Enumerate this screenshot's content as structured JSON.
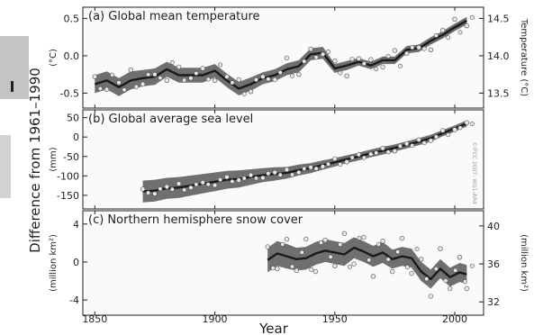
{
  "figure": {
    "y_axis_label": "Difference from 1961–1990",
    "x_axis_label": "Year",
    "watermark": "©IPCC 2007: WG1-AR4"
  },
  "colors": {
    "band": "#6f6f6f",
    "line": "#1a1a1a",
    "points": "#e8e8e8",
    "panel_bg": "#fafafa",
    "left_sidebar": "#c4c4c4"
  },
  "chart_data": [
    {
      "type": "line",
      "title": "(a) Global mean temperature",
      "ylabel": "(°C)",
      "ylabel_right": "Temperature (°C)",
      "xlim": [
        1845,
        2012
      ],
      "ylim": [
        -0.7,
        0.65
      ],
      "ylim_right": [
        13.3,
        14.65
      ],
      "yticks": [
        {
          "v": 0.5,
          "label": "0.5"
        },
        {
          "v": 0.0,
          "label": "0.0"
        },
        {
          "v": -0.5,
          "label": "-0.5"
        }
      ],
      "yticks_right": [
        {
          "v": 14.5,
          "label": "14.5"
        },
        {
          "v": 14.0,
          "label": "14.0"
        },
        {
          "v": 13.5,
          "label": "13.5"
        }
      ],
      "x": [
        1850,
        1855,
        1860,
        1865,
        1870,
        1875,
        1880,
        1885,
        1890,
        1895,
        1900,
        1905,
        1910,
        1915,
        1920,
        1925,
        1930,
        1935,
        1940,
        1945,
        1950,
        1955,
        1960,
        1965,
        1970,
        1975,
        1980,
        1985,
        1990,
        1995,
        2000,
        2005
      ],
      "values": [
        -0.38,
        -0.33,
        -0.42,
        -0.33,
        -0.3,
        -0.28,
        -0.18,
        -0.26,
        -0.26,
        -0.26,
        -0.2,
        -0.33,
        -0.44,
        -0.38,
        -0.3,
        -0.26,
        -0.18,
        -0.14,
        0.02,
        0.04,
        -0.17,
        -0.13,
        -0.08,
        -0.13,
        -0.06,
        -0.06,
        0.08,
        0.1,
        0.2,
        0.28,
        0.38,
        0.47
      ],
      "band_width": [
        0.12,
        0.12,
        0.12,
        0.12,
        0.11,
        0.11,
        0.1,
        0.1,
        0.1,
        0.1,
        0.09,
        0.09,
        0.09,
        0.09,
        0.08,
        0.08,
        0.08,
        0.08,
        0.08,
        0.08,
        0.06,
        0.06,
        0.05,
        0.05,
        0.05,
        0.05,
        0.05,
        0.05,
        0.05,
        0.05,
        0.05,
        0.05
      ],
      "scatter_offsets": [
        0.1,
        -0.12,
        0.06,
        0.14,
        -0.08,
        0.03,
        -0.15,
        0.11,
        -0.04,
        0.09,
        -0.13,
        0.05,
        0.12,
        -0.1,
        0.02,
        -0.06,
        0.15,
        -0.11,
        0.07,
        -0.02,
        0.1,
        -0.14,
        0.04,
        0.08,
        -0.09,
        0.13,
        -0.05,
        0.01,
        -0.12,
        0.06,
        0.11,
        -0.07
      ]
    },
    {
      "type": "line",
      "title": "(b) Global average sea level",
      "ylabel": "(mm)",
      "xlim": [
        1845,
        2012
      ],
      "ylim": [
        -185,
        70
      ],
      "yticks": [
        {
          "v": 50,
          "label": "50"
        },
        {
          "v": 0,
          "label": "0"
        },
        {
          "v": -50,
          "label": "-50"
        },
        {
          "v": -100,
          "label": "-100"
        },
        {
          "v": -150,
          "label": "-150"
        }
      ],
      "x": [
        1870,
        1875,
        1880,
        1885,
        1890,
        1895,
        1900,
        1905,
        1910,
        1915,
        1920,
        1925,
        1930,
        1935,
        1940,
        1945,
        1950,
        1955,
        1960,
        1965,
        1970,
        1975,
        1980,
        1985,
        1990,
        1995,
        2000,
        2005
      ],
      "values": [
        -140,
        -138,
        -132,
        -130,
        -125,
        -120,
        -115,
        -110,
        -108,
        -103,
        -98,
        -95,
        -92,
        -85,
        -80,
        -72,
        -65,
        -57,
        -50,
        -42,
        -35,
        -28,
        -20,
        -12,
        -3,
        10,
        22,
        35
      ],
      "band_width": [
        28,
        28,
        27,
        27,
        26,
        25,
        24,
        23,
        22,
        20,
        18,
        17,
        15,
        14,
        13,
        12,
        11,
        10,
        10,
        10,
        10,
        9,
        9,
        9,
        9,
        8,
        8,
        8
      ],
      "scatter_offsets": [
        6,
        -8,
        4,
        10,
        -5,
        3,
        -9,
        7,
        -3,
        5,
        -7,
        4,
        8,
        -6,
        2,
        -4,
        9,
        -7,
        5,
        -2,
        6,
        -8,
        3,
        5,
        -6,
        7,
        -3,
        2
      ]
    },
    {
      "type": "line",
      "title": "(c) Northern hemisphere snow cover",
      "ylabel": "(million km²)",
      "ylabel_right": "(million km²)",
      "xlim": [
        1845,
        2012
      ],
      "ylim": [
        -5.6,
        5.4
      ],
      "ylim_right": [
        30.6,
        41.6
      ],
      "yticks": [
        {
          "v": 4,
          "label": "4"
        },
        {
          "v": 0,
          "label": "0"
        },
        {
          "v": -4,
          "label": "-4"
        }
      ],
      "yticks_right": [
        {
          "v": 40,
          "label": "40"
        },
        {
          "v": 36,
          "label": "36"
        },
        {
          "v": 32,
          "label": "32"
        }
      ],
      "x": [
        1922,
        1926,
        1930,
        1934,
        1938,
        1942,
        1946,
        1950,
        1954,
        1958,
        1962,
        1966,
        1970,
        1974,
        1978,
        1982,
        1986,
        1990,
        1994,
        1998,
        2002,
        2005
      ],
      "values": [
        0.2,
        0.9,
        0.6,
        0.3,
        0.4,
        0.9,
        1.2,
        1.0,
        0.8,
        1.5,
        1.1,
        0.6,
        1.0,
        0.3,
        0.6,
        0.4,
        -1.0,
        -1.8,
        -0.7,
        -1.6,
        -1.1,
        -1.3
      ],
      "band_width": [
        1.3,
        1.3,
        1.3,
        1.2,
        1.2,
        1.2,
        1.2,
        1.2,
        1.2,
        1.1,
        1.1,
        1.1,
        1.1,
        1.0,
        1.0,
        1.0,
        1.0,
        1.0,
        1.0,
        1.0,
        1.0,
        1.0
      ],
      "scatter_offsets": [
        1.4,
        -1.6,
        1.8,
        -1.2,
        2.0,
        -1.9,
        1.1,
        -1.4,
        2.2,
        -1.7,
        1.5,
        -2.1,
        1.2,
        -1.3,
        1.9,
        -1.6,
        1.3,
        -1.8,
        2.1,
        -1.2,
        1.6,
        -1.5
      ]
    }
  ],
  "x_axis": {
    "ticks": [
      {
        "v": 1850,
        "label": "1850"
      },
      {
        "v": 1900,
        "label": "1900"
      },
      {
        "v": 1950,
        "label": "1950"
      },
      {
        "v": 2000,
        "label": "2000"
      }
    ]
  }
}
